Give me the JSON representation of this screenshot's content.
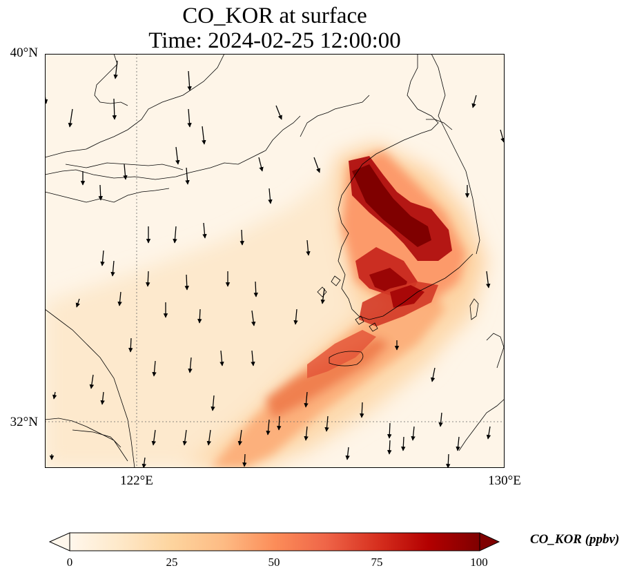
{
  "title": {
    "line1": "CO_KOR at surface",
    "line2": "Time: 2024-02-25 12:00:00"
  },
  "map": {
    "lon_range": [
      118,
      130
    ],
    "lat_range": [
      31.2,
      40
    ],
    "lat_labels": [
      "40°N",
      "32°N"
    ],
    "lon_labels": [
      "122°E",
      "130°E"
    ],
    "gridlines": {
      "lon": [
        122
      ],
      "lat": [
        32
      ],
      "style": "dotted"
    },
    "colormap": "OrRd",
    "field_description": "",
    "wind_vectors": "black arrows, predominantly southward"
  },
  "colorbar": {
    "label": "CO_KOR (ppbv)",
    "min": 0,
    "max": 100,
    "ticks": [
      "0",
      "25",
      "50",
      "75",
      "100"
    ],
    "extend": "both",
    "colors": [
      "#fff7ec",
      "#fee8c8",
      "#fdd49e",
      "#fdbb84",
      "#fc8d59",
      "#ef6548",
      "#d7301f",
      "#b30000",
      "#7f0000"
    ]
  }
}
